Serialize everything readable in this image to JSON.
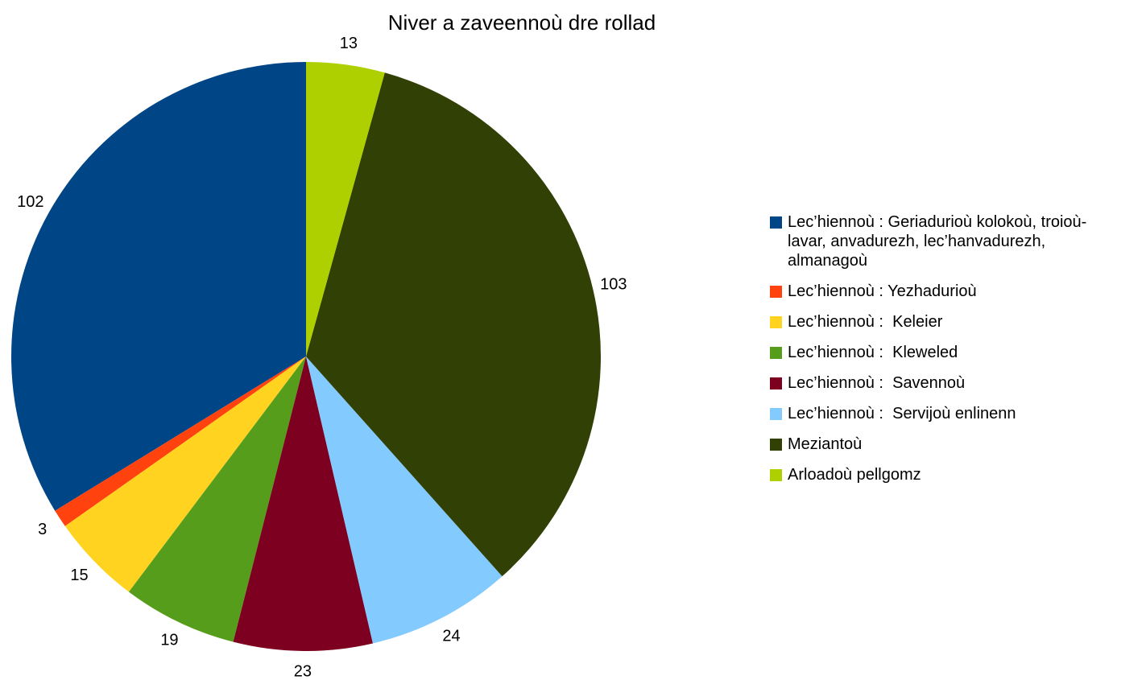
{
  "chart_data": {
    "type": "pie",
    "title": "Niver a zaveennoù dre rollad",
    "categories": [
      "Lec’hiennoù : Geriadurioù kolokoù, troioù-lavar, anvadurezh, lec’hanvadurezh, almanagoù",
      "Lec’hiennoù : Yezhadurioù",
      "Lec’hiennoù :  Keleier",
      "Lec’hiennoù :  Kleweled",
      "Lec’hiennoù :  Savennoù",
      "Lec’hiennoù :  Servijoù enlinenn",
      "Meziantoù",
      "Arloadoù pellgomz"
    ],
    "values": [
      102,
      3,
      15,
      19,
      23,
      24,
      103,
      13
    ],
    "colors": [
      "#004586",
      "#ff420e",
      "#ffd320",
      "#579d1c",
      "#7e0021",
      "#83caff",
      "#314004",
      "#aecf00"
    ],
    "direction": "counterclockwise",
    "start": "top",
    "legend": "right"
  }
}
